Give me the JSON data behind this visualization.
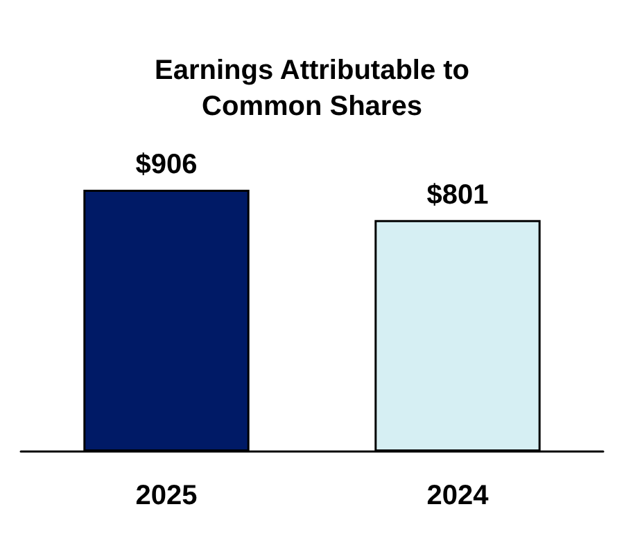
{
  "chart_data": {
    "type": "bar",
    "title": "Earnings Attributable to\nCommon Shares",
    "categories": [
      "2025",
      "2024"
    ],
    "values": [
      906,
      801
    ],
    "colors": [
      "#001a66",
      "#d6eff3"
    ],
    "value_labels": [
      "$906",
      "$801"
    ]
  }
}
